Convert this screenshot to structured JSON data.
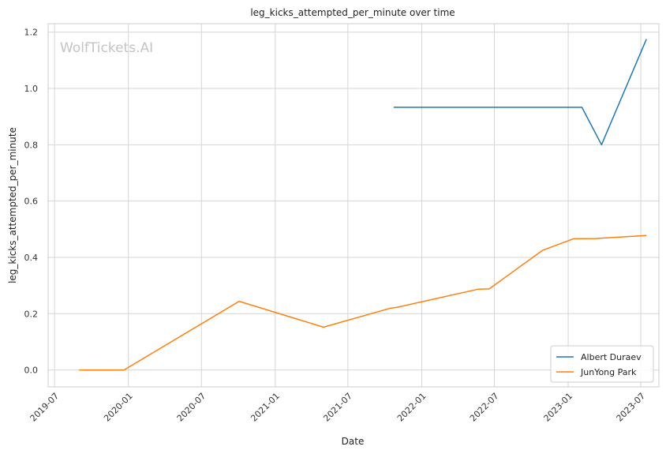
{
  "chart_data": {
    "type": "line",
    "title": "leg_kicks_attempted_per_minute over time",
    "xlabel": "Date",
    "ylabel": "leg_kicks_attempted_per_minute",
    "watermark": "WolfTickets.AI",
    "x_ticks": [
      "2019-07",
      "2020-01",
      "2020-07",
      "2021-01",
      "2021-07",
      "2022-01",
      "2022-07",
      "2023-01",
      "2023-07"
    ],
    "y_ticks": [
      "0.0",
      "0.2",
      "0.4",
      "0.6",
      "0.8",
      "1.0",
      "1.2"
    ],
    "xlim": [
      "2019-06-15",
      "2023-08-15"
    ],
    "ylim": [
      -0.06,
      1.23
    ],
    "grid": true,
    "legend_position": "lower-right",
    "series": [
      {
        "name": "Albert Duraev",
        "color": "#1f77b4",
        "points": [
          {
            "x": "2021-10-23",
            "y": 0.933
          },
          {
            "x": "2023-02-04",
            "y": 0.933
          },
          {
            "x": "2023-03-25",
            "y": 0.8
          },
          {
            "x": "2023-07-15",
            "y": 1.175
          }
        ]
      },
      {
        "name": "JunYong Park",
        "color": "#ff7f0e",
        "points": [
          {
            "x": "2019-08-31",
            "y": 0.0
          },
          {
            "x": "2019-12-21",
            "y": 0.0
          },
          {
            "x": "2020-10-03",
            "y": 0.244
          },
          {
            "x": "2021-05-01",
            "y": 0.152
          },
          {
            "x": "2021-10-16",
            "y": 0.22
          },
          {
            "x": "2021-10-30",
            "y": 0.222
          },
          {
            "x": "2022-05-21",
            "y": 0.287
          },
          {
            "x": "2022-06-18",
            "y": 0.288
          },
          {
            "x": "2022-10-29",
            "y": 0.425
          },
          {
            "x": "2023-01-14",
            "y": 0.466
          },
          {
            "x": "2023-03-11",
            "y": 0.467
          },
          {
            "x": "2023-07-15",
            "y": 0.478
          }
        ]
      }
    ]
  }
}
